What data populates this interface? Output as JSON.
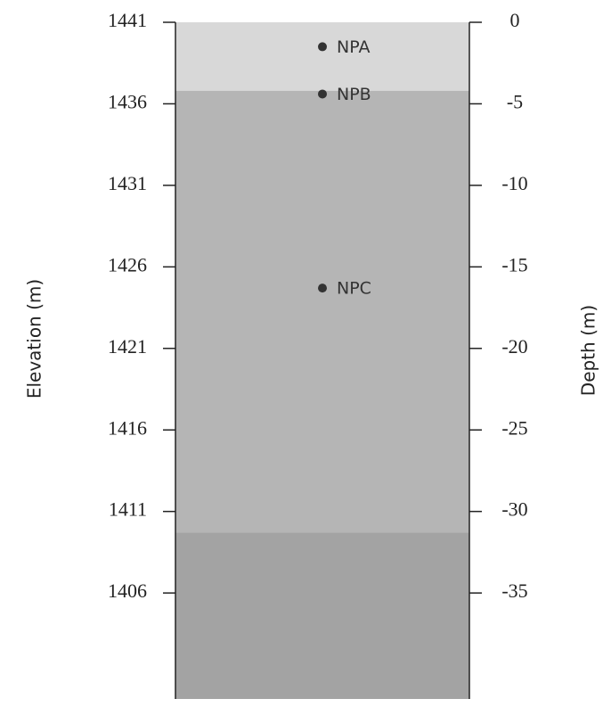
{
  "chart_data": {
    "type": "column",
    "y_label": "Elevation (m)",
    "y2_label": "Depth (m)",
    "ylim": [
      1399.5,
      1441
    ],
    "yticks": [
      1441,
      1436,
      1431,
      1426,
      1421,
      1416,
      1411,
      1406
    ],
    "y2lim": [
      -41.5,
      0
    ],
    "y2ticks": [
      0,
      -5,
      -10,
      -15,
      -20,
      -25,
      -30,
      -35
    ],
    "layer_tops": [
      0,
      -4.2,
      -31.3
    ],
    "layer_colors": [
      "#d8d8d8",
      "#b5b5b5",
      "#a3a3a3"
    ],
    "categories": [
      "NPA",
      "NPB",
      "NPC"
    ],
    "values": [
      -1.5,
      -4.4,
      -16.3
    ],
    "axis": "y2",
    "color": "#333333"
  }
}
